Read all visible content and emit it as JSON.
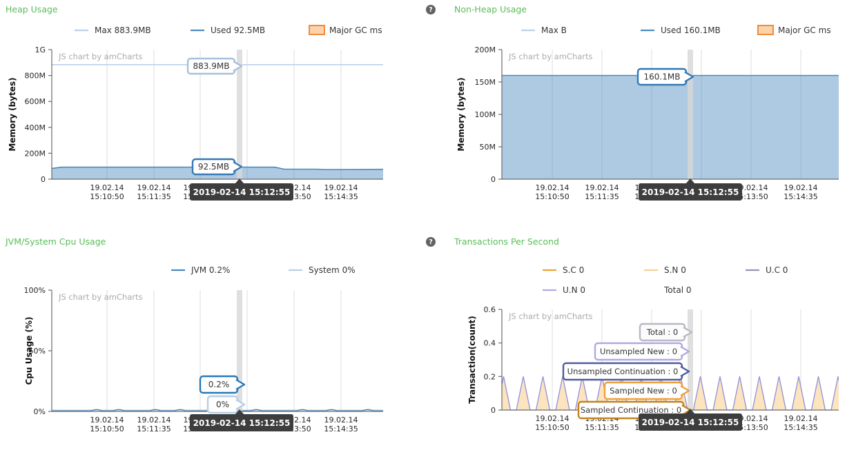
{
  "page": {
    "background": "#ffffff",
    "title_color": "#58bd58"
  },
  "help": {
    "glyph": "?"
  },
  "tooltip": {
    "bg": "#3d3d3d",
    "text_color": "#ffffff"
  },
  "chart_data": [
    {
      "id": "heap",
      "type": "area",
      "title": "Heap Usage",
      "help_icon": false,
      "ylabel": "Memory (bytes)",
      "yticks": [
        "1G",
        "800M",
        "600M",
        "400M",
        "200M",
        "0"
      ],
      "ymax_mb": 1000,
      "xtick_date": "19.02.14",
      "xtick_times": [
        "15:10:50",
        "15:11:35",
        "15:12:20",
        "15:13:05",
        "15:13:50",
        "15:14:35"
      ],
      "watermark": "JS chart by amCharts",
      "legend_rows": [
        [
          {
            "label": "Max 883.9MB",
            "marker": "line",
            "color": "#bccfe8"
          },
          {
            "label": "Used 92.5MB",
            "marker": "line",
            "color": "#4a89be"
          },
          {
            "label": "Major GC ms",
            "marker": "box",
            "color": "#ee8c3e",
            "fill": "#fbd2a9"
          }
        ]
      ],
      "series": [
        {
          "name": "Max",
          "value_label": "883.9MB",
          "value_mb": 883.9,
          "shape": "hline",
          "color": "#bccfe8"
        },
        {
          "name": "Used",
          "value_label": "92.5MB",
          "value_mb": 92.5,
          "shape": "area",
          "color": "#4a89be",
          "fill_opacity": 0.45,
          "points_mb": [
            [
              0,
              83
            ],
            [
              0.03,
              92.5
            ],
            [
              0.45,
              93
            ],
            [
              0.673,
              92.5
            ],
            [
              0.702,
              77
            ],
            [
              0.8,
              77
            ],
            [
              0.825,
              74.5
            ],
            [
              1,
              76
            ]
          ]
        }
      ],
      "balloons": [
        {
          "text": "883.9MB",
          "border": "#a8bfdb"
        },
        {
          "text": "92.5MB",
          "border": "#3878b4"
        }
      ],
      "cursor_time": "2019-02-14 15:12:55"
    },
    {
      "id": "nonheap",
      "type": "area",
      "title": "Non-Heap Usage",
      "help_icon": true,
      "ylabel": "Memory (bytes)",
      "yticks": [
        "200M",
        "150M",
        "100M",
        "50M",
        "0"
      ],
      "ymax_mb": 200,
      "xtick_date": "19.02.14",
      "xtick_times": [
        "15:10:50",
        "15:11:35",
        "15:12:20",
        "15:13:05",
        "15:13:50",
        "15:14:35"
      ],
      "watermark": "JS chart by amCharts",
      "legend_rows": [
        [
          {
            "label": "Max B",
            "marker": "line",
            "color": "#bccfe8"
          },
          {
            "label": "Used 160.1MB",
            "marker": "line",
            "color": "#4a89be"
          },
          {
            "label": "Major GC ms",
            "marker": "box",
            "color": "#ee8c3e",
            "fill": "#fbd2a9"
          }
        ]
      ],
      "series": [
        {
          "name": "Used",
          "value_label": "160.1MB",
          "value_mb": 160.1,
          "shape": "area",
          "color": "#4a89be",
          "fill_opacity": 0.45,
          "points_mb": [
            [
              0,
              160.1
            ],
            [
              1,
              160.1
            ]
          ]
        }
      ],
      "balloons": [
        {
          "text": "160.1MB",
          "border": "#2e78b6"
        }
      ],
      "cursor_time": "2019-02-14 15:12:55"
    },
    {
      "id": "cpu",
      "type": "line",
      "title": "JVM/System Cpu Usage",
      "help_icon": false,
      "ylabel": "Cpu Usage (%)",
      "yticks": [
        "100%",
        "50%",
        "0%"
      ],
      "ymax_pct": 100,
      "xtick_date": "19.02.14",
      "xtick_times": [
        "15:10:50",
        "15:11:35",
        "15:12:20",
        "15:13:05",
        "15:13:50",
        "15:14:35"
      ],
      "watermark": "JS chart by amCharts",
      "legend_rows": [
        [
          {
            "label": "JVM 0.2%",
            "marker": "line",
            "color": "#4a89be"
          },
          {
            "label": "System 0%",
            "marker": "line",
            "color": "#bccfe8"
          }
        ]
      ],
      "series": [
        {
          "name": "JVM",
          "value_label": "0.2%",
          "value_pct": 0.2,
          "color": "#4a89be",
          "bump_x_fractions": [
            0.135,
            0.202,
            0.3125,
            0.3875,
            0.496,
            0.617,
            0.756,
            0.844,
            0.954
          ]
        },
        {
          "name": "System",
          "value_label": "0%",
          "value_pct": 0,
          "color": "#bccfe8"
        }
      ],
      "balloons": [
        {
          "text": "0.2%",
          "border": "#2878b8"
        },
        {
          "text": "0%",
          "border": "#b5cde6"
        }
      ],
      "cursor_time": "2019-02-14 15:12:55"
    },
    {
      "id": "tps",
      "type": "area",
      "title": "Transactions Per Second",
      "help_icon": true,
      "ylabel": "Transaction(count)",
      "yticks": [
        "0.6",
        "0.4",
        "0.2",
        "0"
      ],
      "ymax_count": 0.6,
      "xtick_date": "19.02.14",
      "xtick_times": [
        "15:10:50",
        "15:11:35",
        "15:12:20",
        "15:13:05",
        "15:13:50",
        "15:14:35"
      ],
      "watermark": "JS chart by amCharts",
      "legend_rows": [
        [
          {
            "label": "S.C 0",
            "marker": "line",
            "color": "#eda03c"
          },
          {
            "label": "S.N 0",
            "marker": "line",
            "color": "#f7d092"
          },
          {
            "label": "U.C 0",
            "marker": "line",
            "color": "#9295b5"
          }
        ],
        [
          {
            "label": "U.N 0",
            "marker": "line",
            "color": "#b1a9e1"
          },
          {
            "label": "Total 0",
            "marker": "none",
            "color": "#333333"
          }
        ]
      ],
      "series": [
        {
          "name": "Unsampled New",
          "value_label": "0",
          "spike_value": 0.2,
          "baseline": 0,
          "color": "#918ede",
          "fill": "#fce3bb"
        }
      ],
      "balloons": [
        {
          "text": "Total : 0",
          "border": "#b8b8c6",
          "bg": "#fcfcfc"
        },
        {
          "text": "Unsampled New : 0",
          "border": "#b1a9e1"
        },
        {
          "text": "Unsampled Continuation : 0",
          "border": "#4d5c9b"
        },
        {
          "text": "Sampled New : 0",
          "border": "#eda03c"
        },
        {
          "text": "Sampled Continuation : 0",
          "border": "#c4821c"
        }
      ],
      "cursor_time": "2019-02-14 15:12:55"
    }
  ]
}
